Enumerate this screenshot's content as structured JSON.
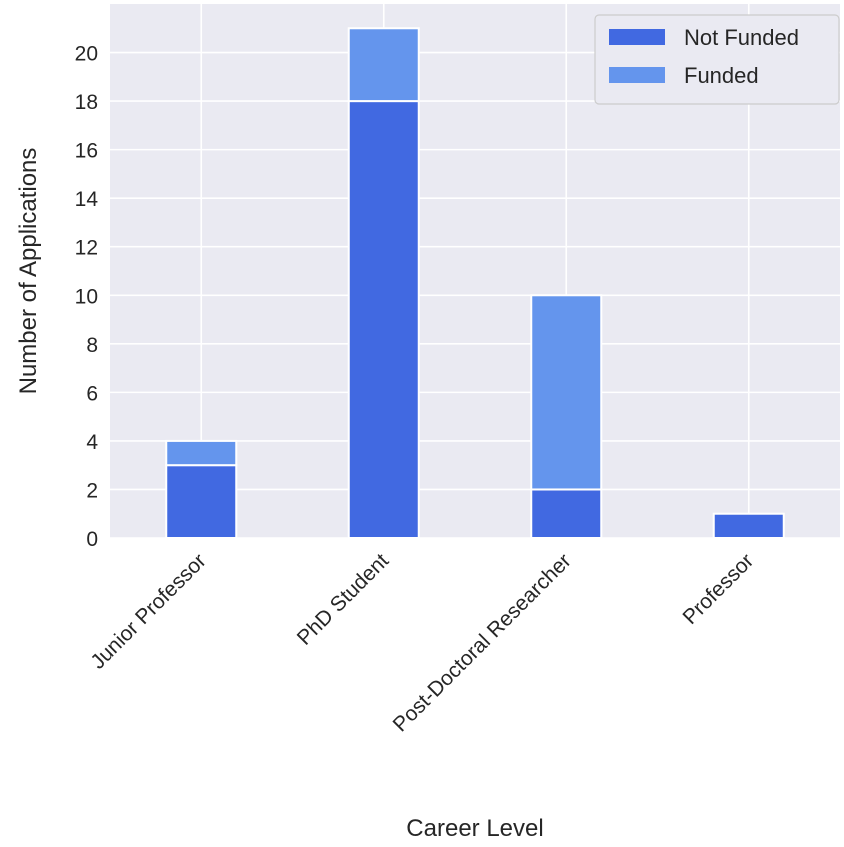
{
  "chart_data": {
    "type": "bar",
    "stacked": true,
    "categories": [
      "Junior Professor",
      "PhD Student",
      "Post-Doctoral Researcher",
      "Professor"
    ],
    "series": [
      {
        "name": "Not Funded",
        "values": [
          3,
          18,
          2,
          1
        ],
        "color": "#4169e1"
      },
      {
        "name": "Funded",
        "values": [
          1,
          3,
          8,
          0
        ],
        "color": "#6495ed"
      }
    ],
    "title": "",
    "xlabel": "Career Level",
    "ylabel": "Number of Applications",
    "ylim": [
      0,
      22
    ],
    "yticks": [
      0,
      2,
      4,
      6,
      8,
      10,
      12,
      14,
      16,
      18,
      20
    ],
    "grid": true,
    "legend_position": "top-right",
    "background": "#eaeaf2"
  }
}
